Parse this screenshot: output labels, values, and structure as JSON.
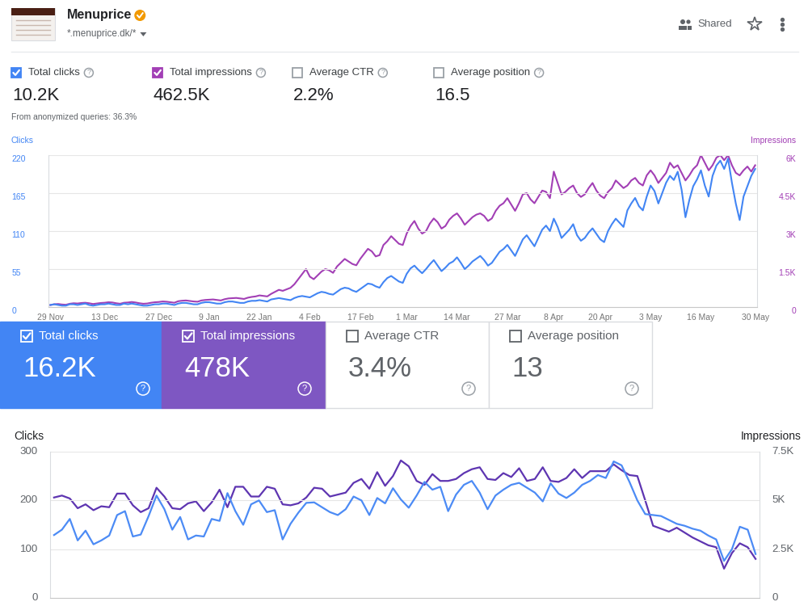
{
  "header": {
    "title": "Menuprice",
    "property": "*.menuprice.dk/*",
    "sharing": "Shared"
  },
  "help_icon": "?",
  "summary": {
    "metrics": [
      {
        "label": "Total clicks",
        "value": "10.2K",
        "checked": true
      },
      {
        "label": "Total impressions",
        "value": "462.5K",
        "checked": true
      },
      {
        "label": "Average CTR",
        "value": "2.2%",
        "checked": false
      },
      {
        "label": "Average position",
        "value": "16.5",
        "checked": false
      }
    ],
    "note": "From anonymized queries: 36.3%"
  },
  "cards": {
    "metrics": [
      {
        "label": "Total clicks",
        "value": "16.2K",
        "checked": true
      },
      {
        "label": "Total impressions",
        "value": "478K",
        "checked": true
      },
      {
        "label": "Average CTR",
        "value": "3.4%",
        "checked": false
      },
      {
        "label": "Average position",
        "value": "13",
        "checked": false
      }
    ]
  },
  "chart_data": [
    {
      "type": "line",
      "categories": [
        "29 Nov",
        null,
        null,
        null,
        null,
        null,
        null,
        null,
        null,
        null,
        null,
        null,
        null,
        null,
        "13 Dec",
        null,
        null,
        null,
        null,
        null,
        null,
        null,
        null,
        null,
        null,
        null,
        null,
        null,
        "27 Dec",
        null,
        null,
        null,
        null,
        null,
        null,
        null,
        null,
        null,
        null,
        null,
        null,
        "9 Jan",
        null,
        null,
        null,
        null,
        null,
        null,
        null,
        null,
        null,
        null,
        null,
        null,
        "22 Jan",
        null,
        null,
        null,
        null,
        null,
        null,
        null,
        null,
        null,
        null,
        null,
        null,
        "4 Feb",
        null,
        null,
        null,
        null,
        null,
        null,
        null,
        null,
        null,
        null,
        null,
        null,
        "17 Feb",
        null,
        null,
        null,
        null,
        null,
        null,
        null,
        null,
        null,
        null,
        null,
        "1 Mar",
        null,
        null,
        null,
        null,
        null,
        null,
        null,
        null,
        null,
        null,
        null,
        null,
        "14 Mar",
        null,
        null,
        null,
        null,
        null,
        null,
        null,
        null,
        null,
        null,
        null,
        null,
        "27 Mar",
        null,
        null,
        null,
        null,
        null,
        null,
        null,
        null,
        null,
        null,
        null,
        "8 Apr",
        null,
        null,
        null,
        null,
        null,
        null,
        null,
        null,
        null,
        null,
        null,
        "20 Apr",
        null,
        null,
        null,
        null,
        null,
        null,
        null,
        null,
        null,
        null,
        null,
        null,
        "3 May",
        null,
        null,
        null,
        null,
        null,
        null,
        null,
        null,
        null,
        null,
        null,
        null,
        "16 May",
        null,
        null,
        null,
        null,
        null,
        null,
        null,
        null,
        null,
        null,
        null,
        null,
        null,
        "30 May"
      ],
      "series": [
        {
          "name": "Clicks",
          "color": "#4285f4",
          "values": [
            3,
            4,
            3,
            2,
            2,
            4,
            4,
            3,
            4,
            5,
            3,
            2,
            3,
            4,
            4,
            5,
            4,
            3,
            3,
            5,
            4,
            5,
            4,
            3,
            2,
            2,
            3,
            4,
            4,
            5,
            5,
            4,
            3,
            5,
            6,
            6,
            5,
            4,
            4,
            6,
            7,
            7,
            6,
            5,
            5,
            7,
            8,
            8,
            7,
            6,
            6,
            8,
            9,
            9,
            10,
            9,
            8,
            11,
            12,
            13,
            12,
            11,
            10,
            13,
            15,
            16,
            15,
            14,
            17,
            20,
            22,
            21,
            19,
            18,
            22,
            26,
            28,
            27,
            24,
            22,
            26,
            30,
            34,
            33,
            30,
            28,
            36,
            42,
            45,
            41,
            37,
            35,
            48,
            56,
            60,
            54,
            49,
            55,
            62,
            68,
            60,
            52,
            57,
            63,
            66,
            72,
            64,
            55,
            60,
            66,
            70,
            74,
            68,
            60,
            64,
            72,
            80,
            84,
            90,
            82,
            74,
            86,
            98,
            104,
            96,
            88,
            100,
            112,
            118,
            110,
            128,
            116,
            100,
            106,
            112,
            120,
            104,
            96,
            100,
            108,
            114,
            106,
            98,
            94,
            110,
            120,
            128,
            122,
            116,
            140,
            150,
            158,
            146,
            140,
            160,
            176,
            168,
            150,
            165,
            180,
            190,
            184,
            196,
            170,
            130,
            155,
            175,
            185,
            198,
            176,
            160,
            190,
            205,
            212,
            200,
            215,
            180,
            150,
            126,
            160,
            175,
            190,
            200
          ]
        },
        {
          "name": "Impressions",
          "color": "#a23fb5",
          "axis": "y2",
          "values": [
            80,
            110,
            120,
            100,
            90,
            130,
            150,
            140,
            160,
            170,
            150,
            120,
            140,
            160,
            170,
            190,
            180,
            150,
            130,
            170,
            180,
            200,
            180,
            150,
            130,
            140,
            170,
            190,
            200,
            220,
            210,
            190,
            170,
            230,
            250,
            260,
            240,
            220,
            210,
            260,
            280,
            290,
            300,
            280,
            260,
            310,
            340,
            350,
            360,
            340,
            320,
            370,
            400,
            420,
            460,
            440,
            420,
            520,
            600,
            680,
            640,
            700,
            760,
            900,
            1100,
            1300,
            1500,
            1200,
            1100,
            1250,
            1400,
            1500,
            1450,
            1350,
            1600,
            1750,
            1900,
            1800,
            1700,
            1650,
            1900,
            2100,
            2300,
            2200,
            2000,
            2050,
            2450,
            2600,
            2800,
            2650,
            2500,
            2450,
            2900,
            3200,
            3400,
            3100,
            2900,
            3000,
            3300,
            3500,
            3350,
            3100,
            3200,
            3450,
            3600,
            3700,
            3500,
            3250,
            3400,
            3550,
            3650,
            3700,
            3600,
            3400,
            3500,
            3800,
            4000,
            4100,
            4300,
            4050,
            3800,
            4100,
            4450,
            4500,
            4250,
            4100,
            4350,
            4600,
            4550,
            4300,
            5350,
            4900,
            4450,
            4550,
            4700,
            4800,
            4500,
            4350,
            4450,
            4700,
            4900,
            4600,
            4400,
            4300,
            4550,
            4700,
            5000,
            4850,
            4700,
            4800,
            5000,
            5100,
            4900,
            4800,
            5200,
            5400,
            5200,
            4900,
            5100,
            5300,
            5700,
            5500,
            5600,
            5300,
            5000,
            5200,
            5450,
            5600,
            6000,
            5700,
            5400,
            5600,
            5900,
            6000,
            5800,
            6000,
            5600,
            5300,
            5200,
            5400,
            5550,
            5350,
            5600
          ]
        }
      ],
      "ylim": [
        0,
        220
      ],
      "yticks": [
        0,
        55,
        110,
        165,
        220
      ],
      "y2lim": [
        0,
        6000
      ],
      "y2ticks": [
        0,
        {
          "value": 1500,
          "label": "1.5K"
        },
        {
          "value": 3000,
          "label": "3K"
        },
        {
          "value": 4500,
          "label": "4.5K"
        },
        {
          "value": 6000,
          "label": "6K"
        }
      ],
      "grid": true
    },
    {
      "type": "line",
      "categories": [
        null,
        null,
        null,
        null,
        null,
        null,
        null,
        null,
        null,
        null,
        null,
        null,
        null,
        null,
        null,
        null,
        null,
        null,
        null,
        null,
        null,
        null,
        null,
        null,
        null,
        null,
        null,
        null,
        null,
        null,
        null,
        null,
        null,
        null,
        null,
        null,
        null,
        null,
        null,
        null,
        null,
        null,
        null,
        null,
        null,
        null,
        null,
        null,
        null,
        null,
        null,
        null,
        null,
        null,
        null,
        null,
        null,
        null,
        null,
        null,
        null,
        null,
        null,
        null,
        null,
        null,
        null,
        null,
        null,
        null,
        null,
        null,
        null,
        null,
        null,
        null,
        null,
        null,
        null,
        null,
        null,
        null,
        null,
        null,
        null,
        null,
        null,
        null,
        null,
        null
      ],
      "series": [
        {
          "name": "Clicks",
          "color": "#4c8bf5",
          "values": [
            129,
            140,
            162,
            118,
            138,
            110,
            118,
            128,
            170,
            178,
            126,
            130,
            168,
            210,
            182,
            140,
            166,
            120,
            128,
            126,
            162,
            158,
            215,
            178,
            150,
            192,
            200,
            176,
            180,
            120,
            152,
            175,
            195,
            196,
            186,
            176,
            170,
            182,
            208,
            200,
            170,
            205,
            194,
            225,
            202,
            185,
            210,
            238,
            222,
            228,
            178,
            212,
            232,
            240,
            216,
            182,
            210,
            222,
            232,
            236,
            226,
            216,
            198,
            235,
            214,
            205,
            216,
            232,
            240,
            252,
            246,
            280,
            272,
            238,
            200,
            172,
            170,
            168,
            160,
            152,
            148,
            142,
            138,
            128,
            120,
            76,
            100,
            146,
            140,
            90
          ]
        },
        {
          "name": "Impressions",
          "color": "#5e35b1",
          "axis": "y2",
          "values": [
            5150,
            5250,
            5100,
            4600,
            4800,
            4500,
            4700,
            4650,
            5350,
            5350,
            4750,
            4400,
            4600,
            5650,
            5200,
            4600,
            4550,
            4850,
            4950,
            4450,
            4900,
            5550,
            4650,
            5700,
            5700,
            5200,
            5200,
            5700,
            5600,
            4800,
            4750,
            4850,
            5150,
            5650,
            5600,
            5200,
            5300,
            5400,
            5900,
            6100,
            5600,
            6450,
            5750,
            6250,
            7050,
            6750,
            6000,
            5800,
            6350,
            6000,
            6000,
            6100,
            6400,
            6600,
            6700,
            6100,
            6050,
            6400,
            6200,
            6650,
            6000,
            6100,
            6700,
            6000,
            5950,
            6150,
            6600,
            6150,
            6500,
            6500,
            6500,
            6850,
            6550,
            6300,
            6250,
            5000,
            3700,
            3550,
            3400,
            3600,
            3350,
            3100,
            2900,
            2700,
            2600,
            1500,
            2300,
            2800,
            2600,
            2000
          ]
        }
      ],
      "ylim": [
        0,
        300
      ],
      "yticks": [
        0,
        100,
        200,
        300
      ],
      "y2lim": [
        0,
        7500
      ],
      "y2ticks": [
        0,
        {
          "value": 2500,
          "label": "2.5K"
        },
        {
          "value": 5000,
          "label": "5K"
        },
        {
          "value": 7500,
          "label": "7.5K"
        }
      ],
      "grid": true,
      "tick_labels": "y"
    }
  ]
}
